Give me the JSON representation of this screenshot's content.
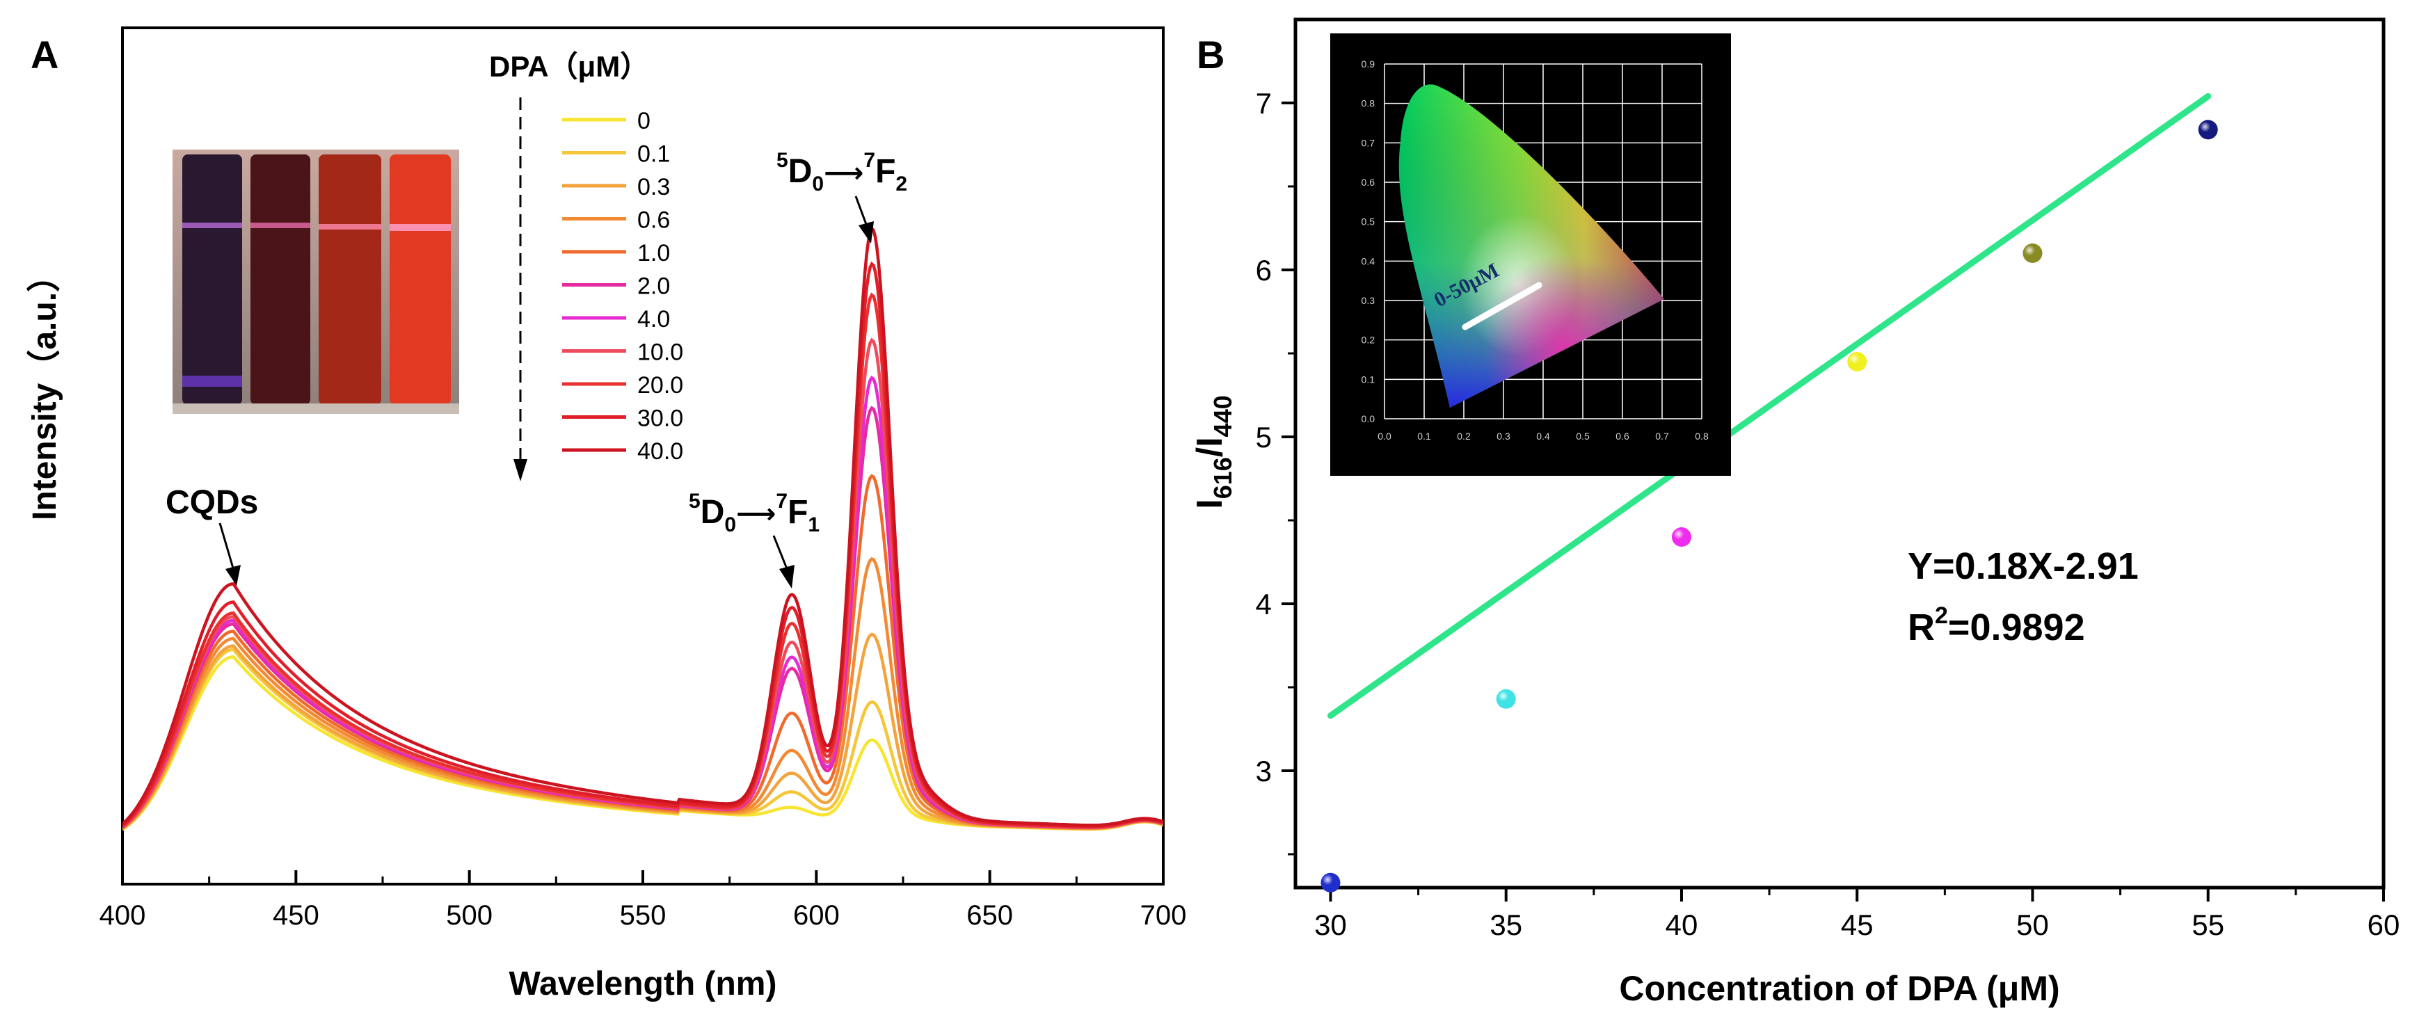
{
  "panel_a": {
    "label": "A",
    "legend_title": "DPA（μM）",
    "annotations": {
      "cqds": "CQDs",
      "f1_pre": "5",
      "f1_d": "D",
      "f1_sub0": "0",
      "f1_arrow": "⟶",
      "f1_pre7": "7",
      "f1_f": "F",
      "f1_sub": "1",
      "f2_pre": "5",
      "f2_d": "D",
      "f2_sub0": "0",
      "f2_arrow": "⟶",
      "f2_pre7": "7",
      "f2_f": "F",
      "f2_sub": "2"
    }
  },
  "panel_b": {
    "label": "B",
    "equation": "Y=0.18X-2.91",
    "r2_prefix": "R",
    "r2_sup": "2",
    "r2_value": "=0.9892",
    "ylabel_main": "I",
    "ylabel_sub1": "616",
    "ylabel_slash": "/I",
    "ylabel_sub2": "440",
    "inset": {
      "label": "0-50μM",
      "xticks": [
        "0.0",
        "0.1",
        "0.2",
        "0.3",
        "0.4",
        "0.5",
        "0.6",
        "0.7",
        "0.8"
      ],
      "yticks": [
        "0.9",
        "0.8",
        "0.7",
        "0.6",
        "0.5",
        "0.4",
        "0.3",
        "0.2",
        "0.1",
        "0.0"
      ]
    }
  },
  "colors": {
    "fit_line": "#2ee58a",
    "axis": "#000000",
    "series": [
      "#f7e531",
      "#f5c53a",
      "#f3a43c",
      "#f28a33",
      "#ef6a2c",
      "#e62aa0",
      "#e52cd0",
      "#ef4b5c",
      "#ea3030",
      "#e01f2a",
      "#cc1420"
    ]
  },
  "chart_data": [
    {
      "type": "line",
      "title": "",
      "xlabel": "Wavelength (nm)",
      "ylabel": "Intensity（a.u.）",
      "xlim": [
        400,
        700
      ],
      "ylim": [
        0,
        1
      ],
      "xticks": [
        400,
        450,
        500,
        550,
        600,
        650,
        700
      ],
      "legend_title": "DPA（μM）",
      "series": [
        {
          "name": "0",
          "cqd": 0.255,
          "f1": 0.015,
          "f2": 0.11
        },
        {
          "name": "0.1",
          "cqd": 0.265,
          "f1": 0.035,
          "f2": 0.16
        },
        {
          "name": "0.3",
          "cqd": 0.27,
          "f1": 0.06,
          "f2": 0.25
        },
        {
          "name": "0.6",
          "cqd": 0.28,
          "f1": 0.09,
          "f2": 0.35
        },
        {
          "name": "1.0",
          "cqd": 0.29,
          "f1": 0.14,
          "f2": 0.46
        },
        {
          "name": "2.0",
          "cqd": 0.3,
          "f1": 0.2,
          "f2": 0.55
        },
        {
          "name": "4.0",
          "cqd": 0.305,
          "f1": 0.215,
          "f2": 0.59
        },
        {
          "name": "10.0",
          "cqd": 0.31,
          "f1": 0.235,
          "f2": 0.64
        },
        {
          "name": "20.0",
          "cqd": 0.315,
          "f1": 0.26,
          "f2": 0.7
        },
        {
          "name": "30.0",
          "cqd": 0.33,
          "f1": 0.28,
          "f2": 0.74
        },
        {
          "name": "40.0",
          "cqd": 0.355,
          "f1": 0.295,
          "f2": 0.785
        }
      ]
    },
    {
      "type": "scatter",
      "title": "",
      "xlabel": "Concentration of DPA (μM)",
      "ylabel": "I616/I440",
      "xlim": [
        29,
        60
      ],
      "ylim": [
        2.3,
        7.5
      ],
      "xticks": [
        30,
        35,
        40,
        45,
        50,
        55,
        60
      ],
      "yticks": [
        3,
        4,
        5,
        6,
        7
      ],
      "points": [
        {
          "x": 30,
          "y": 2.33,
          "color": "#1f2fcc"
        },
        {
          "x": 35,
          "y": 3.43,
          "color": "#3fe3e6"
        },
        {
          "x": 40,
          "y": 4.4,
          "color": "#ee2cee"
        },
        {
          "x": 45,
          "y": 5.45,
          "color": "#f0f020"
        },
        {
          "x": 50,
          "y": 6.1,
          "color": "#8a8a24"
        },
        {
          "x": 55,
          "y": 6.84,
          "color": "#141a80"
        }
      ],
      "fit": {
        "slope": 0.18,
        "intercept": -2.91,
        "x_range": [
          30,
          55
        ]
      }
    }
  ]
}
